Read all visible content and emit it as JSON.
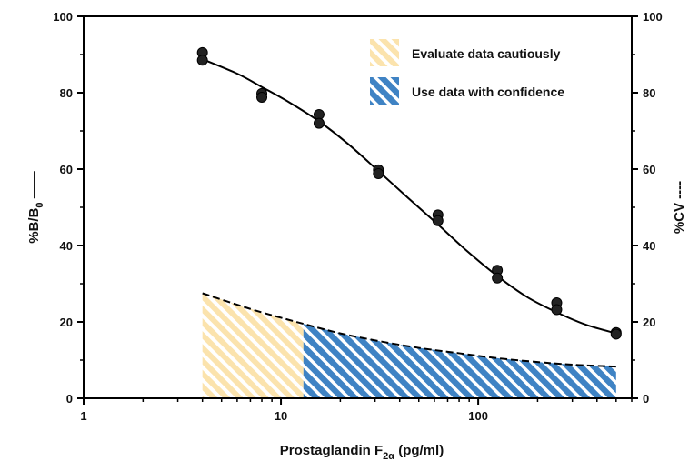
{
  "colors": {
    "caution_fill": "#fbe3ad",
    "caution_stripe": "#ffffff",
    "confidence_fill": "#3f83c4",
    "confidence_stripe": "#ffffff",
    "curve": "#000000",
    "points": "#222222"
  },
  "chart_data": {
    "type": "scatter",
    "x_scale": "log",
    "xlim": [
      1,
      600
    ],
    "ylim": [
      0,
      100
    ],
    "y2lim": [
      0,
      100
    ],
    "x_ticks": [
      1,
      10,
      100
    ],
    "y_ticks": [
      0,
      20,
      40,
      60,
      80,
      100
    ],
    "y2_ticks": [
      0,
      20,
      40,
      60,
      80,
      100
    ],
    "xlabel": {
      "main": "Prostaglandin F",
      "sub": "2α",
      "unit": " (pg/ml)"
    },
    "ylabel": {
      "main": "%B/B",
      "sub": "0",
      "line": " ——"
    },
    "y2label": "%CV ----",
    "legend": [
      {
        "label": "Evaluate data cautiously",
        "style": "caution"
      },
      {
        "label": "Use data with confidence",
        "style": "confidence"
      }
    ],
    "points": [
      {
        "x": 4,
        "y": 90.5
      },
      {
        "x": 4,
        "y": 88.5
      },
      {
        "x": 8,
        "y": 79.8
      },
      {
        "x": 8,
        "y": 78.8
      },
      {
        "x": 15.6,
        "y": 74.3
      },
      {
        "x": 15.6,
        "y": 72.0
      },
      {
        "x": 31.2,
        "y": 59.8
      },
      {
        "x": 31.2,
        "y": 58.8
      },
      {
        "x": 62.5,
        "y": 48.0
      },
      {
        "x": 62.5,
        "y": 46.5
      },
      {
        "x": 125,
        "y": 33.5
      },
      {
        "x": 125,
        "y": 31.5
      },
      {
        "x": 250,
        "y": 25.0
      },
      {
        "x": 250,
        "y": 23.2
      },
      {
        "x": 500,
        "y": 17.2
      },
      {
        "x": 500,
        "y": 16.8
      }
    ],
    "fit_curve": [
      {
        "x": 4,
        "y": 88.8
      },
      {
        "x": 6,
        "y": 85.0
      },
      {
        "x": 8,
        "y": 81.5
      },
      {
        "x": 11,
        "y": 77.5
      },
      {
        "x": 15.6,
        "y": 72.5
      },
      {
        "x": 22,
        "y": 66.5
      },
      {
        "x": 31.2,
        "y": 59.5
      },
      {
        "x": 44,
        "y": 52.5
      },
      {
        "x": 62.5,
        "y": 45.5
      },
      {
        "x": 88,
        "y": 38.5
      },
      {
        "x": 125,
        "y": 32.0
      },
      {
        "x": 177,
        "y": 26.5
      },
      {
        "x": 250,
        "y": 22.5
      },
      {
        "x": 354,
        "y": 19.2
      },
      {
        "x": 500,
        "y": 17.0
      }
    ],
    "cv_curve": [
      {
        "x": 4,
        "y": 27.5
      },
      {
        "x": 6,
        "y": 24.5
      },
      {
        "x": 8,
        "y": 22.5
      },
      {
        "x": 13,
        "y": 19.5
      },
      {
        "x": 20,
        "y": 17.0
      },
      {
        "x": 31.2,
        "y": 15.0
      },
      {
        "x": 50,
        "y": 13.2
      },
      {
        "x": 80,
        "y": 11.8
      },
      {
        "x": 125,
        "y": 10.5
      },
      {
        "x": 200,
        "y": 9.5
      },
      {
        "x": 300,
        "y": 8.8
      },
      {
        "x": 500,
        "y": 8.3
      }
    ],
    "caution_range": [
      4,
      13
    ],
    "confidence_range": [
      13,
      500
    ]
  }
}
